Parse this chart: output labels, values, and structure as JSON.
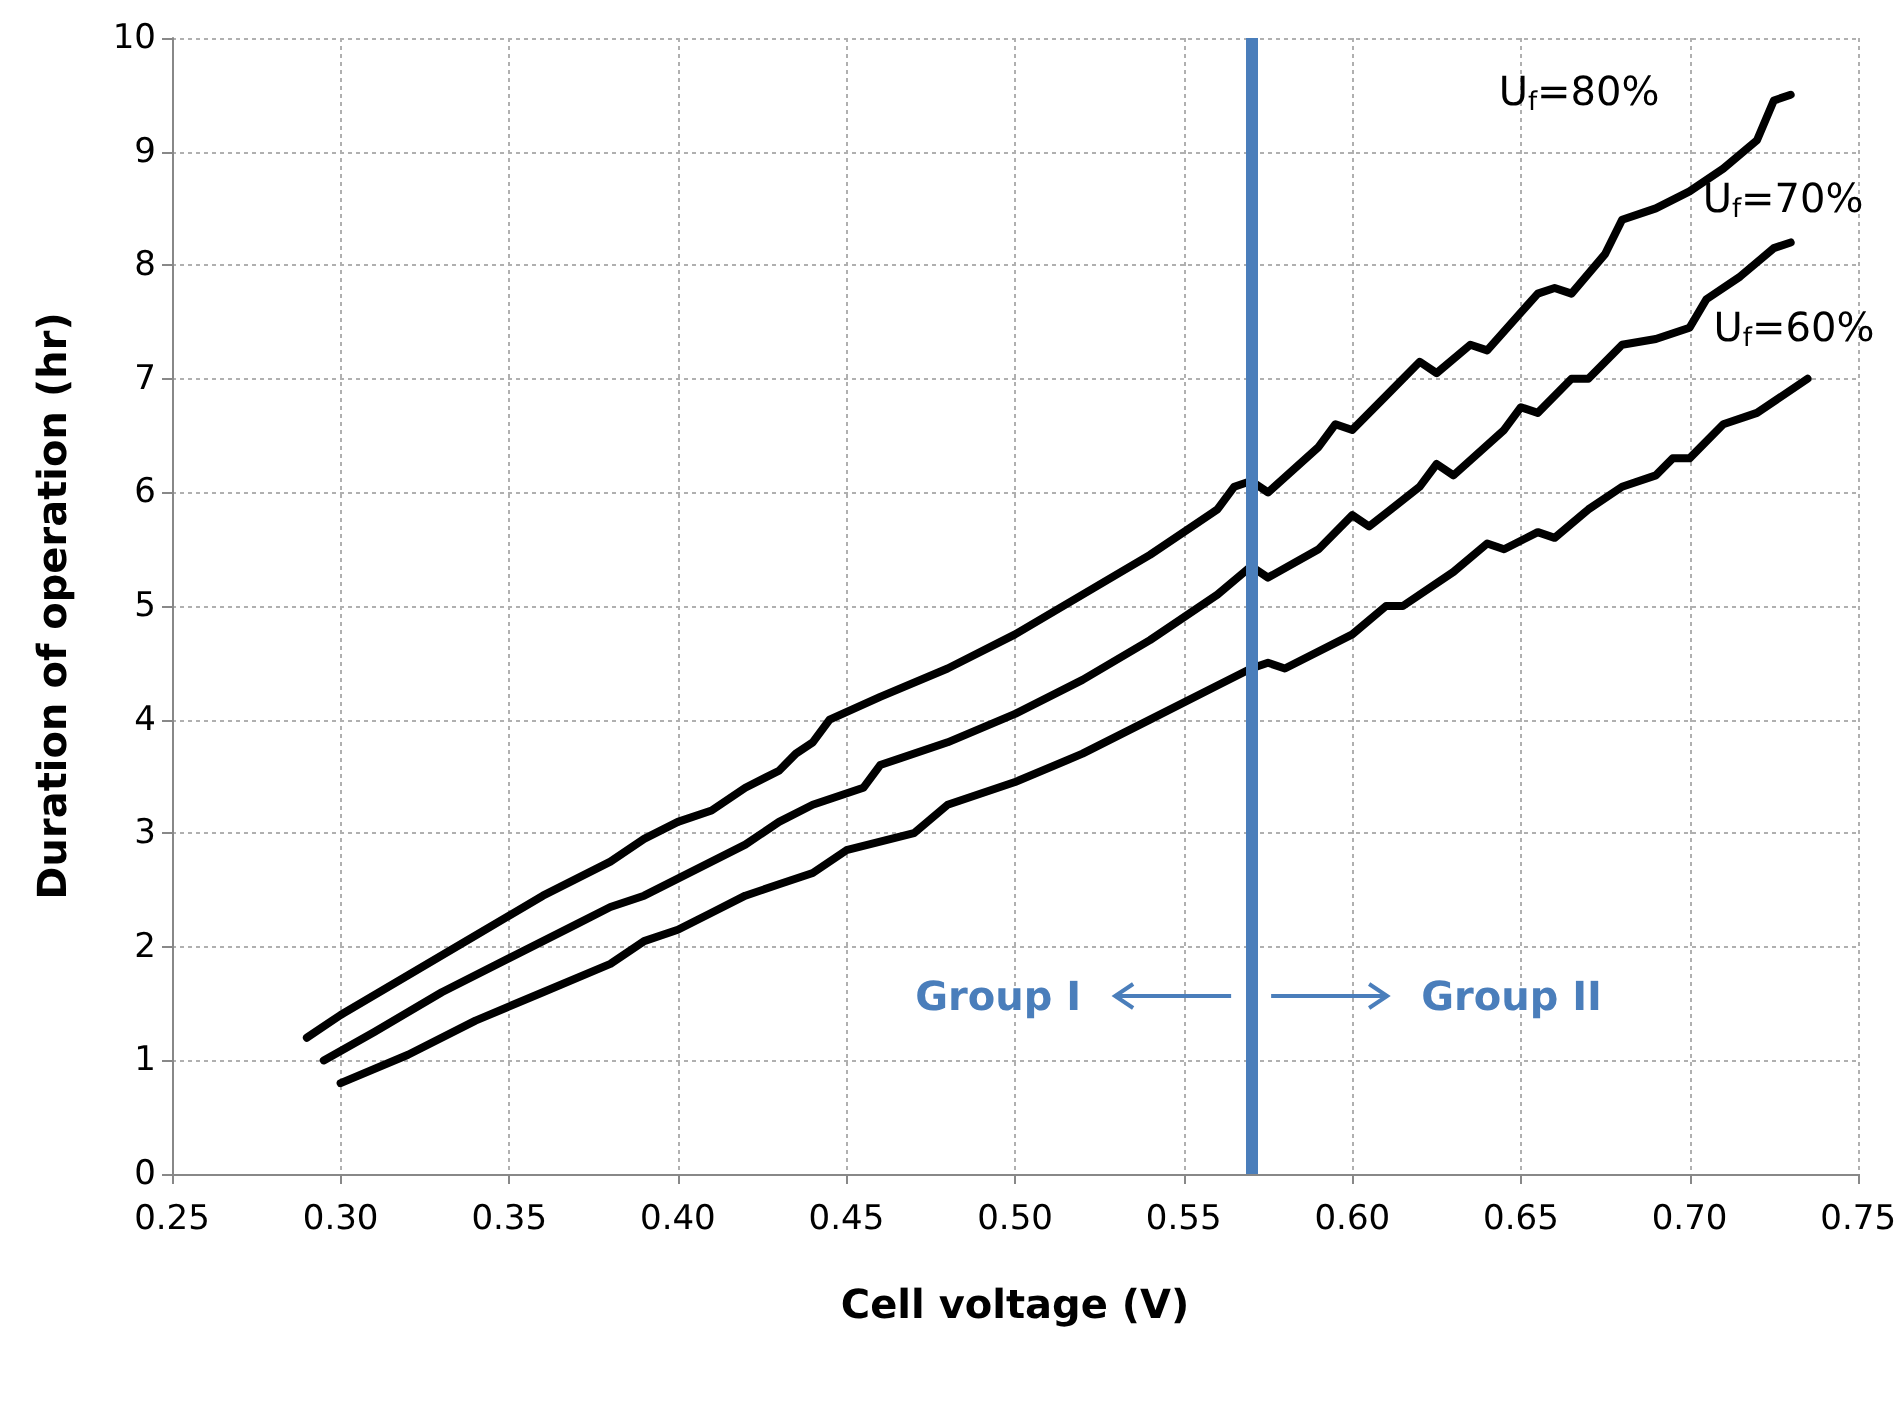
{
  "chart_data": {
    "type": "line",
    "xlabel": "Cell voltage (V)",
    "ylabel": "Duration of operation (hr)",
    "xlim": [
      0.25,
      0.75
    ],
    "xticks": [
      {
        "value": 0.25,
        "label": "0.25"
      },
      {
        "value": 0.3,
        "label": "0.30"
      },
      {
        "value": 0.35,
        "label": "0.35"
      },
      {
        "value": 0.4,
        "label": "0.40"
      },
      {
        "value": 0.45,
        "label": "0.45"
      },
      {
        "value": 0.5,
        "label": "0.50"
      },
      {
        "value": 0.55,
        "label": "0.55"
      },
      {
        "value": 0.6,
        "label": "0.60"
      },
      {
        "value": 0.65,
        "label": "0.65"
      },
      {
        "value": 0.7,
        "label": "0.70"
      },
      {
        "value": 0.75,
        "label": "0.75"
      }
    ],
    "ylim": [
      0,
      10
    ],
    "yticks": [
      0,
      1,
      2,
      3,
      4,
      5,
      6,
      7,
      8,
      9,
      10
    ],
    "grid": true,
    "legend": false,
    "marker": "none",
    "line_style": "solid",
    "series": [
      {
        "name": "U$_{f}$=80%",
        "color": "#000000",
        "x": [
          0.29,
          0.3,
          0.32,
          0.34,
          0.36,
          0.37,
          0.38,
          0.39,
          0.4,
          0.41,
          0.42,
          0.43,
          0.435,
          0.44,
          0.445,
          0.46,
          0.48,
          0.5,
          0.52,
          0.54,
          0.56,
          0.565,
          0.57,
          0.575,
          0.59,
          0.595,
          0.6,
          0.61,
          0.62,
          0.625,
          0.635,
          0.64,
          0.655,
          0.66,
          0.665,
          0.675,
          0.68,
          0.69,
          0.7,
          0.71,
          0.72,
          0.725,
          0.73
        ],
        "values": [
          1.2,
          1.4,
          1.75,
          2.1,
          2.45,
          2.6,
          2.75,
          2.95,
          3.1,
          3.2,
          3.4,
          3.55,
          3.7,
          3.8,
          4.0,
          4.2,
          4.45,
          4.75,
          5.1,
          5.45,
          5.85,
          6.05,
          6.1,
          6.0,
          6.4,
          6.6,
          6.55,
          6.85,
          7.15,
          7.05,
          7.3,
          7.25,
          7.75,
          7.8,
          7.75,
          8.1,
          8.4,
          8.5,
          8.65,
          8.85,
          9.1,
          9.45,
          9.5
        ]
      },
      {
        "name": "U$_{f}$=70%",
        "color": "#000000",
        "x": [
          0.295,
          0.31,
          0.33,
          0.35,
          0.37,
          0.38,
          0.39,
          0.4,
          0.41,
          0.42,
          0.43,
          0.44,
          0.455,
          0.46,
          0.48,
          0.5,
          0.52,
          0.54,
          0.56,
          0.57,
          0.575,
          0.59,
          0.6,
          0.605,
          0.62,
          0.625,
          0.63,
          0.645,
          0.65,
          0.655,
          0.665,
          0.67,
          0.68,
          0.69,
          0.7,
          0.705,
          0.715,
          0.725,
          0.73
        ],
        "values": [
          1.0,
          1.25,
          1.6,
          1.9,
          2.2,
          2.35,
          2.45,
          2.6,
          2.75,
          2.9,
          3.1,
          3.25,
          3.4,
          3.6,
          3.8,
          4.05,
          4.35,
          4.7,
          5.1,
          5.35,
          5.25,
          5.5,
          5.8,
          5.7,
          6.05,
          6.25,
          6.15,
          6.55,
          6.75,
          6.7,
          7.0,
          7.0,
          7.3,
          7.35,
          7.45,
          7.7,
          7.9,
          8.15,
          8.2
        ]
      },
      {
        "name": "U$_{f}$=60%",
        "color": "#000000",
        "x": [
          0.3,
          0.32,
          0.34,
          0.36,
          0.38,
          0.39,
          0.4,
          0.41,
          0.42,
          0.43,
          0.44,
          0.45,
          0.47,
          0.48,
          0.5,
          0.52,
          0.54,
          0.56,
          0.57,
          0.575,
          0.58,
          0.6,
          0.61,
          0.615,
          0.63,
          0.64,
          0.645,
          0.655,
          0.66,
          0.67,
          0.68,
          0.69,
          0.695,
          0.7,
          0.71,
          0.72,
          0.735
        ],
        "values": [
          0.8,
          1.05,
          1.35,
          1.6,
          1.85,
          2.05,
          2.15,
          2.3,
          2.45,
          2.55,
          2.65,
          2.85,
          3.0,
          3.25,
          3.45,
          3.7,
          4.0,
          4.3,
          4.45,
          4.5,
          4.45,
          4.75,
          5.0,
          5.0,
          5.3,
          5.55,
          5.5,
          5.65,
          5.6,
          5.85,
          6.05,
          6.15,
          6.3,
          6.3,
          6.6,
          6.7,
          7.0
        ]
      }
    ],
    "ref_lines": [
      {
        "axis": "x",
        "value": 0.57,
        "color": "#4a7ebb"
      }
    ],
    "annotations": [
      "Group I",
      "Group II"
    ]
  }
}
